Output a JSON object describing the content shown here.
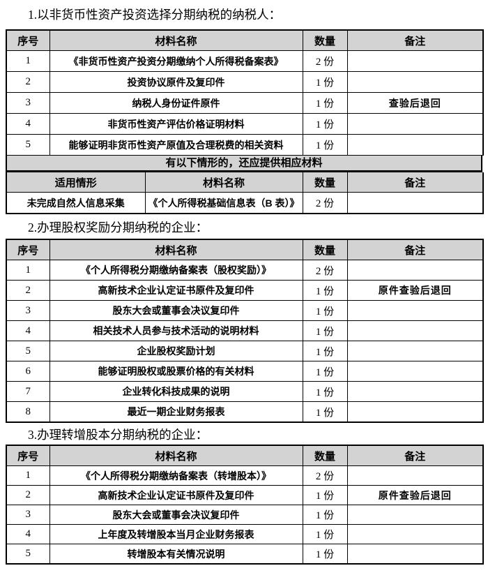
{
  "colors": {
    "header_bg": "#d3d3d3",
    "border": "#000000",
    "page_bg": "#ffffff"
  },
  "sections": [
    {
      "title": "1.以非货币性资产投资选择分期纳税的纳税人：",
      "table": {
        "headers": [
          "序号",
          "材料名称",
          "数量",
          "备注"
        ],
        "rows": [
          [
            "1",
            "《非货币性资产投资分期缴纳个人所得税备案表》",
            "2 份",
            ""
          ],
          [
            "2",
            "投资协议原件及复印件",
            "1 份",
            ""
          ],
          [
            "3",
            "纳税人身份证件原件",
            "1 份",
            "查验后退回"
          ],
          [
            "4",
            "非货币性资产评估价格证明材料",
            "1 份",
            ""
          ],
          [
            "5",
            "能够证明非货币性资产原值及合理税费的相关资料",
            "1 份",
            ""
          ]
        ]
      },
      "note": "有以下情形的，还应提供相应材料",
      "sub_table": {
        "headers": [
          "适用情形",
          "材料名称",
          "数量",
          "备注"
        ],
        "rows": [
          [
            "未完成自然人信息采集",
            "《个人所得税基础信息表（B 表）》",
            "2 份",
            ""
          ]
        ]
      }
    },
    {
      "title": "2.办理股权奖励分期纳税的企业：",
      "table": {
        "headers": [
          "序号",
          "材料名称",
          "数量",
          "备注"
        ],
        "rows": [
          [
            "1",
            "《个人所得税分期缴纳备案表（股权奖励）》",
            "2 份",
            ""
          ],
          [
            "2",
            "高新技术企业认定证书原件及复印件",
            "1 份",
            "原件查验后退回"
          ],
          [
            "3",
            "股东大会或董事会决议复印件",
            "1 份",
            ""
          ],
          [
            "4",
            "相关技术人员参与技术活动的说明材料",
            "1 份",
            ""
          ],
          [
            "5",
            "企业股权奖励计划",
            "1 份",
            ""
          ],
          [
            "6",
            "能够证明股权或股票价格的有关材料",
            "1 份",
            ""
          ],
          [
            "7",
            "企业转化科技成果的说明",
            "1 份",
            ""
          ],
          [
            "8",
            "最近一期企业财务报表",
            "1 份",
            ""
          ]
        ]
      }
    },
    {
      "title": "3.办理转增股本分期纳税的企业：",
      "table": {
        "headers": [
          "序号",
          "材料名称",
          "数量",
          "备注"
        ],
        "rows": [
          [
            "1",
            "《个人所得税分期缴纳备案表（转增股本）》",
            "2 份",
            ""
          ],
          [
            "2",
            "高新技术企业认定证书原件及复印件",
            "1 份",
            "原件查验后退回"
          ],
          [
            "3",
            "股东大会或董事会决议复印件",
            "1 份",
            ""
          ],
          [
            "4",
            "上年度及转增股本当月企业财务报表",
            "1 份",
            ""
          ],
          [
            "5",
            "转增股本有关情况说明",
            "1 份",
            ""
          ]
        ]
      }
    }
  ]
}
